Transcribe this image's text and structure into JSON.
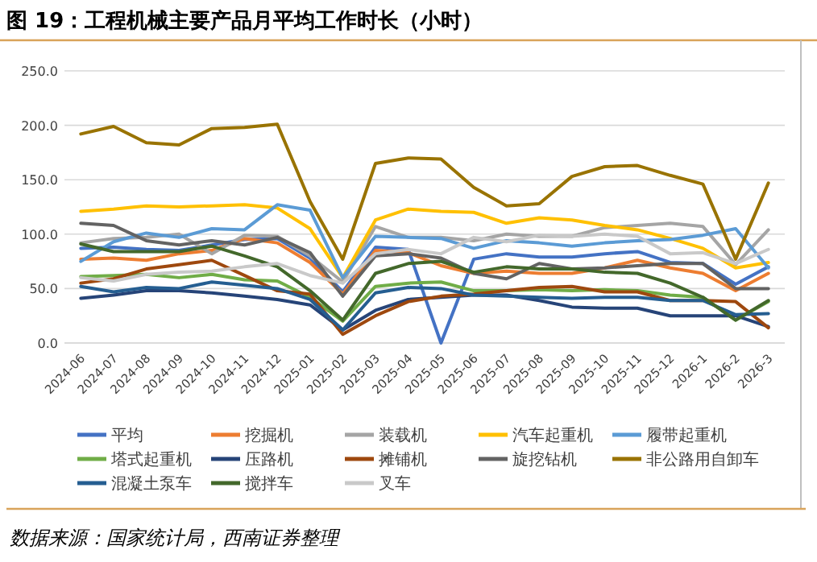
{
  "chart_data": {
    "type": "line",
    "title": "图 19：工程机械主要产品月平均工作时长（小时）",
    "categories": [
      "2024-06",
      "2024-07",
      "2024-08",
      "2024-09",
      "2024-10",
      "2024-11",
      "2024-12",
      "2025-01",
      "2025-02",
      "2025-03",
      "2025-04",
      "2025-05",
      "2025-06",
      "2025-07",
      "2025-08",
      "2025-09",
      "2025-10",
      "2025-11",
      "2025-12",
      "2026-1",
      "2026-2",
      "2026-3"
    ],
    "ylim": [
      0,
      250
    ],
    "yticks": [
      {
        "value": 0,
        "label": "0.0"
      },
      {
        "value": 50,
        "label": "50.0"
      },
      {
        "value": 100,
        "label": "100.0"
      },
      {
        "value": 150,
        "label": "150.0"
      },
      {
        "value": 200,
        "label": "200.0"
      },
      {
        "value": 250,
        "label": "250.0"
      }
    ],
    "grid": "y",
    "legend": "bottom",
    "marker": "none",
    "line_style": "solid",
    "series": [
      {
        "name": "平均",
        "color": "#4472c4",
        "values": [
          87,
          88,
          86,
          85,
          90,
          95,
          96,
          78,
          47,
          88,
          86,
          0,
          77,
          82,
          79,
          79,
          82,
          84,
          74,
          73,
          54,
          70
        ]
      },
      {
        "name": "挖掘机",
        "color": "#ed7d31",
        "values": [
          77,
          78,
          76,
          82,
          85,
          96,
          92,
          74,
          45,
          85,
          83,
          71,
          64,
          66,
          64,
          64,
          69,
          76,
          69,
          64,
          48,
          64
        ]
      },
      {
        "name": "装载机",
        "color": "#a5a5a5",
        "values": [
          92,
          96,
          97,
          100,
          82,
          99,
          98,
          80,
          56,
          107,
          97,
          97,
          94,
          100,
          98,
          98,
          106,
          108,
          110,
          107,
          72,
          104
        ]
      },
      {
        "name": "汽车起重机",
        "color": "#ffc000",
        "values": [
          121,
          123,
          126,
          125,
          126,
          127,
          124,
          105,
          60,
          113,
          123,
          121,
          120,
          110,
          115,
          113,
          108,
          104,
          96,
          87,
          69,
          74
        ]
      },
      {
        "name": "履带起重机",
        "color": "#5b9bd5",
        "values": [
          75,
          93,
          101,
          97,
          105,
          104,
          127,
          122,
          60,
          98,
          97,
          96,
          87,
          94,
          92,
          89,
          92,
          94,
          95,
          99,
          105,
          69
        ]
      },
      {
        "name": "塔式起重机",
        "color": "#70ad47",
        "values": [
          61,
          62,
          63,
          60,
          63,
          58,
          57,
          42,
          20,
          52,
          55,
          56,
          48,
          48,
          49,
          48,
          49,
          48,
          44,
          42,
          21,
          38
        ]
      },
      {
        "name": "压路机",
        "color": "#264478",
        "values": [
          41,
          44,
          48,
          48,
          46,
          43,
          40,
          35,
          12,
          30,
          40,
          42,
          44,
          44,
          39,
          33,
          32,
          32,
          25,
          25,
          25,
          15
        ]
      },
      {
        "name": "摊铺机",
        "color": "#9e480e",
        "values": [
          55,
          59,
          68,
          72,
          76,
          62,
          48,
          45,
          8,
          25,
          38,
          43,
          45,
          48,
          51,
          52,
          47,
          47,
          39,
          39,
          38,
          14
        ]
      },
      {
        "name": "旋挖钻机",
        "color": "#636363",
        "values": [
          110,
          108,
          94,
          90,
          94,
          90,
          97,
          83,
          43,
          80,
          82,
          78,
          64,
          59,
          73,
          68,
          69,
          71,
          73,
          73,
          50,
          50
        ]
      },
      {
        "name": "非公路用自卸车",
        "color": "#997300",
        "values": [
          192,
          199,
          184,
          182,
          197,
          198,
          201,
          130,
          77,
          165,
          170,
          169,
          143,
          126,
          128,
          153,
          162,
          163,
          154,
          146,
          77,
          147
        ]
      },
      {
        "name": "混凝土泵车",
        "color": "#255e91",
        "values": [
          52,
          47,
          51,
          50,
          56,
          53,
          50,
          40,
          12,
          46,
          51,
          50,
          44,
          43,
          42,
          41,
          42,
          42,
          39,
          39,
          26,
          27
        ]
      },
      {
        "name": "搅拌车",
        "color": "#43682b",
        "values": [
          91,
          84,
          84,
          84,
          89,
          80,
          70,
          48,
          21,
          64,
          73,
          75,
          65,
          70,
          68,
          68,
          65,
          64,
          55,
          42,
          21,
          39
        ]
      },
      {
        "name": "叉车",
        "color": "#c9c9c9",
        "values": [
          60,
          57,
          63,
          65,
          66,
          70,
          73,
          62,
          55,
          82,
          86,
          82,
          97,
          93,
          99,
          98,
          100,
          98,
          82,
          83,
          73,
          86
        ]
      }
    ],
    "annotations": [
      "数据来源：国家统计局，西南证券整理"
    ]
  }
}
